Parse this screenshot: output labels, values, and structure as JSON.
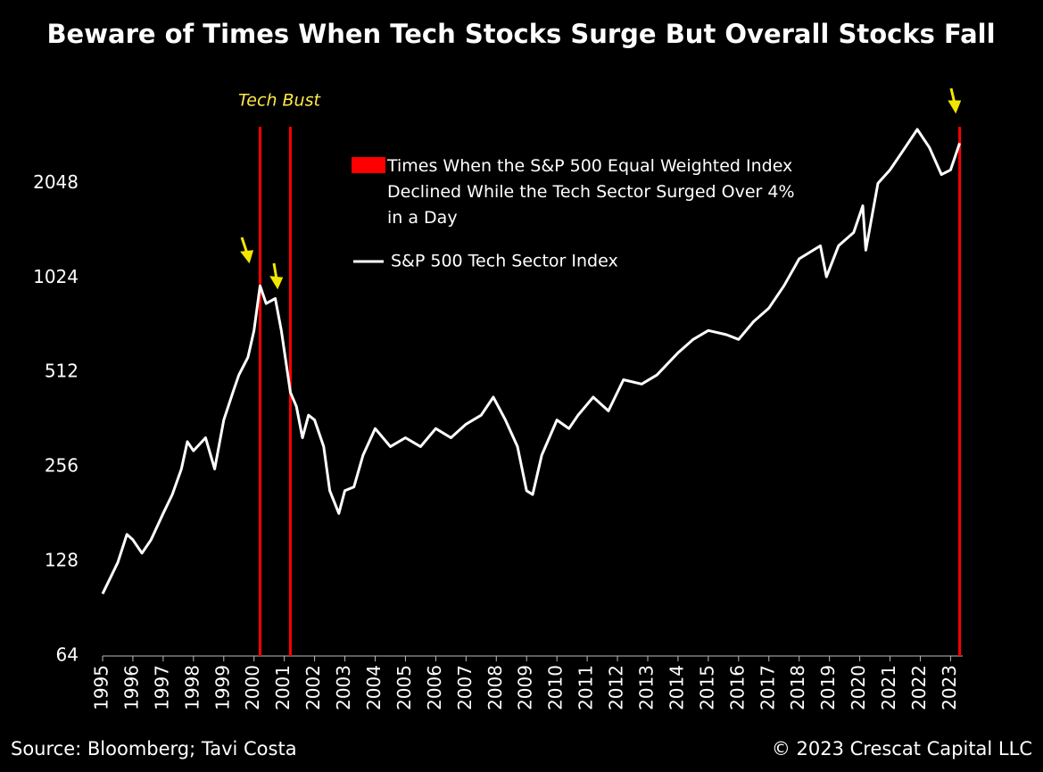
{
  "chart_data": {
    "type": "line",
    "title": "Beware of Times When Tech Stocks Surge But Overall Stocks Fall",
    "annotation": "Tech Bust",
    "source": "Source: Bloomberg; Tavi Costa",
    "copyright": "© 2023 Crescat Capital LLC",
    "log_scale": true,
    "grid": false,
    "legend": "upper center",
    "x": [
      1995.0,
      1995.5,
      1995.8,
      1996.0,
      1996.3,
      1996.6,
      1997.0,
      1997.3,
      1997.6,
      1997.8,
      1998.0,
      1998.4,
      1998.7,
      1999.0,
      1999.3,
      1999.5,
      1999.8,
      2000.0,
      2000.2,
      2000.4,
      2000.7,
      2000.9,
      2001.2,
      2001.4,
      2001.6,
      2001.8,
      2002.0,
      2002.3,
      2002.5,
      2002.8,
      2003.0,
      2003.3,
      2003.6,
      2004.0,
      2004.5,
      2005.0,
      2005.5,
      2006.0,
      2006.5,
      2007.0,
      2007.5,
      2007.9,
      2008.3,
      2008.7,
      2009.0,
      2009.2,
      2009.5,
      2010.0,
      2010.4,
      2010.7,
      2011.2,
      2011.7,
      2012.2,
      2012.8,
      2013.3,
      2014.0,
      2014.5,
      2015.0,
      2015.6,
      2016.0,
      2016.5,
      2017.0,
      2017.5,
      2018.0,
      2018.7,
      2018.9,
      2019.3,
      2019.8,
      2020.1,
      2020.2,
      2020.6,
      2021.0,
      2021.5,
      2021.9,
      2022.3,
      2022.7,
      2023.0,
      2023.3
    ],
    "series": [
      {
        "name": "S&P 500 Tech Sector Index",
        "color": "#ffffff",
        "values": [
          101,
          127,
          156,
          150,
          136,
          150,
          182,
          209,
          252,
          308,
          288,
          317,
          252,
          361,
          442,
          502,
          572,
          696,
          966,
          848,
          880,
          696,
          442,
          399,
          317,
          374,
          361,
          297,
          215,
          182,
          215,
          221,
          279,
          339,
          297,
          317,
          297,
          339,
          317,
          350,
          374,
          427,
          361,
          297,
          215,
          209,
          279,
          361,
          339,
          374,
          427,
          386,
          485,
          470,
          502,
          591,
          652,
          696,
          675,
          652,
          744,
          820,
          966,
          1177,
          1295,
          1031,
          1295,
          1428,
          1736,
          1254,
          2048,
          2259,
          2662,
          3040,
          2662,
          2183,
          2259,
          2748
        ]
      }
    ],
    "highlight": {
      "name": "Times When the S&P 500 Equal Weighted Index Declined While the Tech Sector Surged Over 4% in a Day",
      "color": "#ff0000",
      "x": [
        2000.2,
        2001.2,
        2023.3
      ]
    },
    "xlim": [
      1995,
      2023.4
    ],
    "xticks": [
      1995,
      1996,
      1997,
      1998,
      1999,
      2000,
      2001,
      2002,
      2003,
      2004,
      2005,
      2006,
      2007,
      2008,
      2009,
      2010,
      2011,
      2012,
      2013,
      2014,
      2015,
      2016,
      2017,
      2018,
      2019,
      2020,
      2021,
      2022,
      2023
    ],
    "ylim": [
      64,
      3100
    ],
    "yticks": [
      64,
      128,
      256,
      512,
      1024,
      2048
    ]
  }
}
